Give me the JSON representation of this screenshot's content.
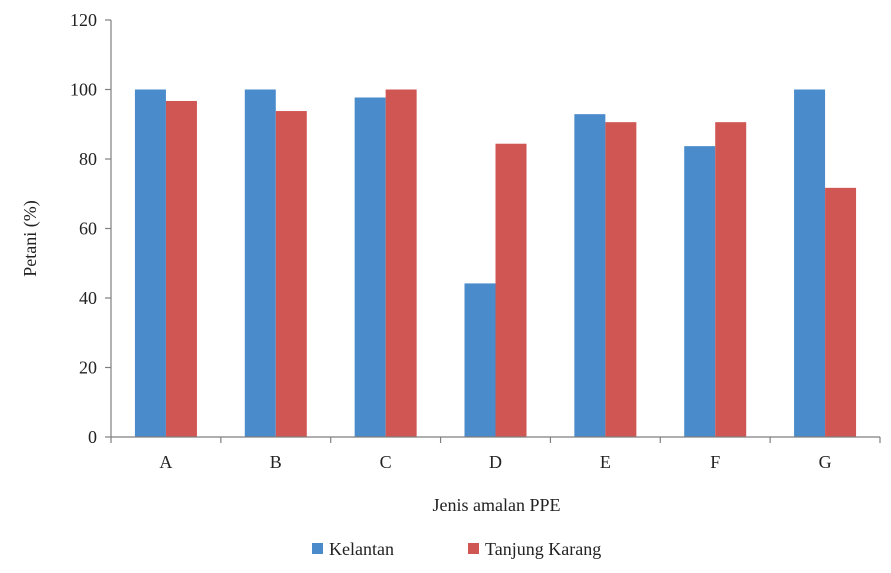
{
  "chart_data": {
    "type": "bar",
    "title": "",
    "xlabel": "Jenis amalan PPE",
    "ylabel": "Petani (%)",
    "ylim": [
      0,
      120
    ],
    "yticks": [
      0,
      20,
      40,
      60,
      80,
      100,
      120
    ],
    "categories": [
      "A",
      "B",
      "C",
      "D",
      "E",
      "F",
      "G"
    ],
    "series": [
      {
        "name": "Kelantan",
        "color": "#4a8bcb",
        "values": [
          100,
          100,
          97.7,
          44.2,
          92.9,
          83.7,
          100
        ]
      },
      {
        "name": "Tanjung Karang",
        "color": "#d05653",
        "values": [
          96.7,
          93.8,
          100,
          84.4,
          90.6,
          90.6,
          71.7
        ]
      }
    ],
    "legend_position": "bottom-center",
    "grid": false
  }
}
